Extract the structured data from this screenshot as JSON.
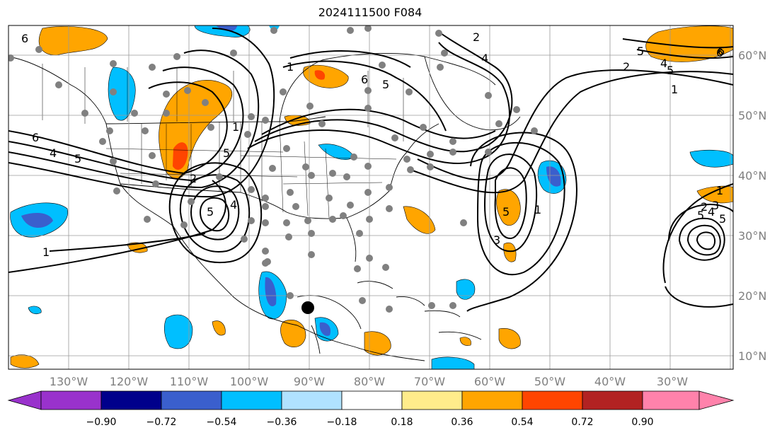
{
  "title": "2024111500 F084",
  "lon_labels": [
    "130°W",
    "120°W",
    "110°W",
    "100°W",
    "90°W",
    "80°W",
    "70°W",
    "60°W",
    "50°W",
    "40°W",
    "30°W"
  ],
  "lat_labels": [
    "60°N",
    "50°N",
    "40°N",
    "30°N",
    "20°N",
    "10°N"
  ],
  "colorbar": {
    "ticks": [
      "−0.90",
      "−0.72",
      "−0.54",
      "−0.36",
      "−0.18",
      "0.18",
      "0.36",
      "0.54",
      "0.72",
      "0.90"
    ],
    "colors": [
      "#9932cc",
      "#00008b",
      "#3a5fcd",
      "#00bfff",
      "#b0e2ff",
      "#ffffff",
      "#ffec8b",
      "#ffa500",
      "#ff4500",
      "#b22222",
      "#ff82ab"
    ]
  },
  "contour_labels": [
    "6",
    "2",
    "4",
    "6",
    "5",
    "4",
    "5",
    "2",
    "1",
    "6",
    "5",
    "4",
    "1",
    "5",
    "2",
    "5",
    "1",
    "1",
    "6",
    "4",
    "5",
    "1",
    "5",
    "5",
    "4",
    "3",
    "1",
    "2",
    "3",
    "5",
    "6"
  ],
  "storm_marker": "black-dot"
}
